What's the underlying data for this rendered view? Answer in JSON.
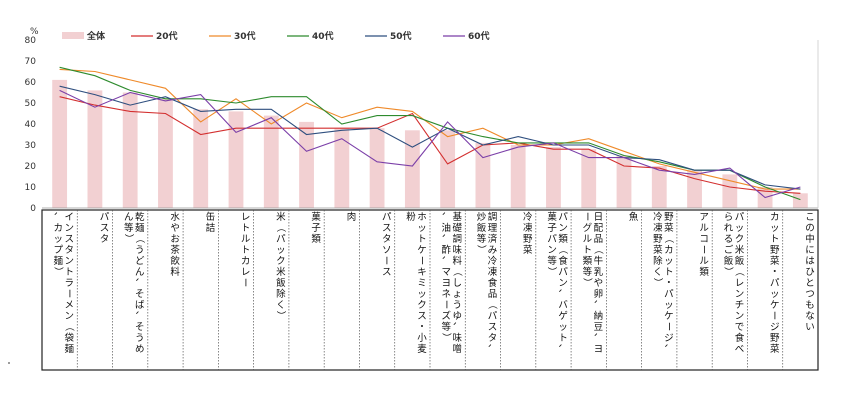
{
  "chart_data": {
    "type": "bar",
    "y_unit": "%",
    "ylim": [
      0,
      80
    ],
    "yticks": [
      0,
      10,
      20,
      30,
      40,
      50,
      60,
      70,
      80
    ],
    "legend_position": "top",
    "grid": false,
    "categories": [
      "インスタントラーメン（袋麺、カップ麺）",
      "パスタ",
      "乾麺（うどん、そば、そうめん等）",
      "水やお茶飲料",
      "缶詰",
      "レトルトカレー",
      "米（パック米飯除く）",
      "菓子類",
      "肉",
      "パスタソース",
      "ホットケーキミックス・小麦粉",
      "基礎調味料（しょうゆ、味噌、油、酢、マヨネーズ等）",
      "調理済み冷凍食品（パスタ、炒飯等）",
      "冷凍野菜",
      "パン類（食パン、バゲット、菓子パン等）",
      "日配品（牛乳や卵、納豆、ヨーグルト類等）",
      "魚",
      "野菜（カット・パッケージ、冷凍野菜除く）",
      "アルコール類",
      "パック米飯（レンチンで食べられるご飯）",
      "カット野菜・パッケージ野菜",
      "この中にはひとつもない"
    ],
    "series": [
      {
        "name": "全体",
        "type": "bar",
        "color": "#f2d0d2",
        "values": [
          61,
          56,
          55,
          52,
          47,
          46,
          44,
          41,
          38,
          38,
          37,
          37,
          31,
          30,
          29,
          28,
          25,
          20,
          18,
          16,
          10,
          7
        ]
      },
      {
        "name": "20代",
        "type": "line",
        "color": "#d32f2f",
        "values": [
          53,
          49,
          46,
          45,
          35,
          38,
          38,
          38,
          38,
          38,
          45,
          21,
          30,
          31,
          28,
          28,
          20,
          19,
          14,
          10,
          8,
          7
        ]
      },
      {
        "name": "30代",
        "type": "line",
        "color": "#ef8a2a",
        "values": [
          66,
          65,
          61,
          57,
          41,
          52,
          40,
          50,
          43,
          48,
          46,
          34,
          38,
          30,
          30,
          33,
          27,
          21,
          17,
          13,
          9,
          9
        ]
      },
      {
        "name": "40代",
        "type": "line",
        "color": "#2e8b2e",
        "values": [
          67,
          63,
          56,
          52,
          52,
          50,
          53,
          53,
          40,
          44,
          44,
          38,
          34,
          31,
          31,
          31,
          25,
          22,
          18,
          18,
          10,
          4
        ]
      },
      {
        "name": "50代",
        "type": "line",
        "color": "#2f4f7f",
        "values": [
          58,
          54,
          49,
          53,
          46,
          47,
          47,
          35,
          37,
          38,
          29,
          38,
          30,
          34,
          30,
          30,
          24,
          23,
          18,
          18,
          11,
          9
        ]
      },
      {
        "name": "60代",
        "type": "line",
        "color": "#7b3fa8",
        "values": [
          56,
          48,
          55,
          51,
          54,
          36,
          43,
          27,
          33,
          22,
          20,
          41,
          24,
          29,
          31,
          24,
          24,
          18,
          16,
          19,
          5,
          10
        ]
      }
    ]
  }
}
